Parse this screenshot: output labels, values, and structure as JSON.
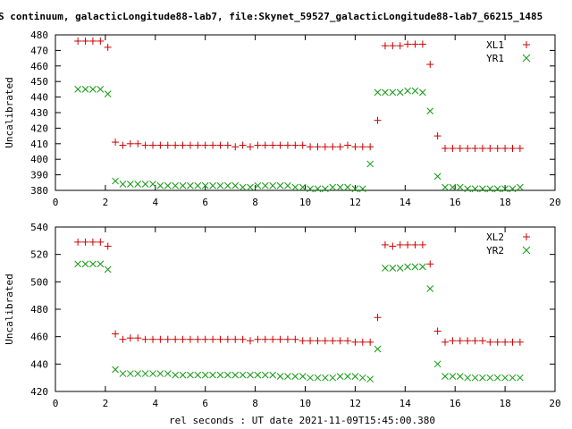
{
  "figure_title": "S continuum, galacticLongitude88-lab7, file:Skynet_59527_galacticLongitude88-lab7_66215_1485",
  "xlabel": "rel seconds : UT date 2021-11-09T15:45:00.380",
  "colors": {
    "plus": "#cc0000",
    "cross": "#119911",
    "axis": "#000000"
  },
  "chart_data": [
    {
      "type": "scatter",
      "ylabel": "Uncalibrated",
      "xlim": [
        0,
        20
      ],
      "ylim": [
        380,
        480
      ],
      "xticks": [
        "0",
        "2",
        "4",
        "6",
        "8",
        "10",
        "12",
        "14",
        "16",
        "18",
        "20"
      ],
      "yticks": [
        "380",
        "390",
        "400",
        "410",
        "420",
        "430",
        "440",
        "450",
        "460",
        "470",
        "480"
      ],
      "legend_position": "top-right",
      "series": [
        {
          "name": "XL1",
          "marker": "plus",
          "x": [
            0.9,
            1.2,
            1.5,
            1.8,
            2.1,
            2.4,
            2.7,
            3.0,
            3.3,
            3.6,
            3.9,
            4.2,
            4.5,
            4.8,
            5.1,
            5.4,
            5.7,
            6.0,
            6.3,
            6.6,
            6.9,
            7.2,
            7.5,
            7.8,
            8.1,
            8.4,
            8.7,
            9.0,
            9.3,
            9.6,
            9.9,
            10.2,
            10.5,
            10.8,
            11.1,
            11.4,
            11.7,
            12.0,
            12.3,
            12.6,
            12.9,
            13.2,
            13.5,
            13.8,
            14.1,
            14.4,
            14.7,
            15.0,
            15.3,
            15.6,
            15.9,
            16.2,
            16.5,
            16.8,
            17.1,
            17.4,
            17.7,
            18.0,
            18.3,
            18.6
          ],
          "y": [
            476,
            476,
            476,
            476,
            472,
            411,
            409,
            410,
            410,
            409,
            409,
            409,
            409,
            409,
            409,
            409,
            409,
            409,
            409,
            409,
            409,
            408,
            409,
            408,
            409,
            409,
            409,
            409,
            409,
            409,
            409,
            408,
            408,
            408,
            408,
            408,
            409,
            408,
            408,
            408,
            425,
            473,
            473,
            473,
            474,
            474,
            474,
            461,
            415,
            407,
            407,
            407,
            407,
            407,
            407,
            407,
            407,
            407,
            407,
            407
          ],
          "y_note": "indices 39-40 at x=12.3,12.6"
        },
        {
          "name": "YR1",
          "marker": "cross",
          "x": [
            0.9,
            1.2,
            1.5,
            1.8,
            2.1,
            2.4,
            2.7,
            3.0,
            3.3,
            3.6,
            3.9,
            4.2,
            4.5,
            4.8,
            5.1,
            5.4,
            5.7,
            6.0,
            6.3,
            6.6,
            6.9,
            7.2,
            7.5,
            7.8,
            8.1,
            8.4,
            8.7,
            9.0,
            9.3,
            9.6,
            9.9,
            10.2,
            10.5,
            10.8,
            11.1,
            11.4,
            11.7,
            12.0,
            12.3,
            12.6,
            12.9,
            13.2,
            13.5,
            13.8,
            14.1,
            14.4,
            14.7,
            15.0,
            15.3,
            15.6,
            15.9,
            16.2,
            16.5,
            16.8,
            17.1,
            17.4,
            17.7,
            18.0,
            18.3,
            18.6
          ],
          "y": [
            445,
            445,
            445,
            445,
            442,
            386,
            384,
            384,
            384,
            384,
            384,
            383,
            383,
            383,
            383,
            383,
            383,
            383,
            383,
            383,
            383,
            383,
            382,
            382,
            383,
            383,
            383,
            383,
            383,
            382,
            382,
            381,
            381,
            381,
            382,
            382,
            382,
            381,
            381,
            397,
            443,
            443,
            443,
            443,
            444,
            444,
            443,
            431,
            389,
            382,
            382,
            382,
            381,
            381,
            381,
            381,
            381,
            381,
            381,
            382
          ]
        }
      ]
    },
    {
      "type": "scatter",
      "ylabel": "Uncalibrated",
      "xlim": [
        0,
        20
      ],
      "ylim": [
        420,
        540
      ],
      "xticks": [
        "0",
        "2",
        "4",
        "6",
        "8",
        "10",
        "12",
        "14",
        "16",
        "18",
        "20"
      ],
      "yticks": [
        "420",
        "440",
        "460",
        "480",
        "500",
        "520",
        "540"
      ],
      "legend_position": "top-right",
      "series": [
        {
          "name": "XL2",
          "marker": "plus",
          "x": [
            0.9,
            1.2,
            1.5,
            1.8,
            2.1,
            2.4,
            2.7,
            3.0,
            3.3,
            3.6,
            3.9,
            4.2,
            4.5,
            4.8,
            5.1,
            5.4,
            5.7,
            6.0,
            6.3,
            6.6,
            6.9,
            7.2,
            7.5,
            7.8,
            8.1,
            8.4,
            8.7,
            9.0,
            9.3,
            9.6,
            9.9,
            10.2,
            10.5,
            10.8,
            11.1,
            11.4,
            11.7,
            12.0,
            12.3,
            12.6,
            12.9,
            13.2,
            13.5,
            13.8,
            14.1,
            14.4,
            14.7,
            15.0,
            15.3,
            15.6,
            15.9,
            16.2,
            16.5,
            16.8,
            17.1,
            17.4,
            17.7,
            18.0,
            18.3,
            18.6
          ],
          "y": [
            529,
            529,
            529,
            529,
            526,
            462,
            458,
            459,
            459,
            458,
            458,
            458,
            458,
            458,
            458,
            458,
            458,
            458,
            458,
            458,
            458,
            458,
            458,
            457,
            458,
            458,
            458,
            458,
            458,
            458,
            457,
            457,
            457,
            457,
            457,
            457,
            457,
            456,
            456,
            456,
            474,
            527,
            526,
            527,
            527,
            527,
            527,
            513,
            464,
            456,
            457,
            457,
            457,
            457,
            457,
            456,
            456,
            456,
            456,
            456
          ]
        },
        {
          "name": "YR2",
          "marker": "cross",
          "x": [
            0.9,
            1.2,
            1.5,
            1.8,
            2.1,
            2.4,
            2.7,
            3.0,
            3.3,
            3.6,
            3.9,
            4.2,
            4.5,
            4.8,
            5.1,
            5.4,
            5.7,
            6.0,
            6.3,
            6.6,
            6.9,
            7.2,
            7.5,
            7.8,
            8.1,
            8.4,
            8.7,
            9.0,
            9.3,
            9.6,
            9.9,
            10.2,
            10.5,
            10.8,
            11.1,
            11.4,
            11.7,
            12.0,
            12.3,
            12.6,
            12.9,
            13.2,
            13.5,
            13.8,
            14.1,
            14.4,
            14.7,
            15.0,
            15.3,
            15.6,
            15.9,
            16.2,
            16.5,
            16.8,
            17.1,
            17.4,
            17.7,
            18.0,
            18.3,
            18.6
          ],
          "y": [
            513,
            513,
            513,
            513,
            509,
            436,
            433,
            433,
            433,
            433,
            433,
            433,
            433,
            432,
            432,
            432,
            432,
            432,
            432,
            432,
            432,
            432,
            432,
            432,
            432,
            432,
            432,
            431,
            431,
            431,
            431,
            430,
            430,
            430,
            430,
            431,
            431,
            431,
            430,
            429,
            451,
            510,
            510,
            510,
            511,
            511,
            511,
            495,
            440,
            431,
            431,
            431,
            430,
            430,
            430,
            430,
            430,
            430,
            430,
            430
          ]
        }
      ]
    }
  ]
}
